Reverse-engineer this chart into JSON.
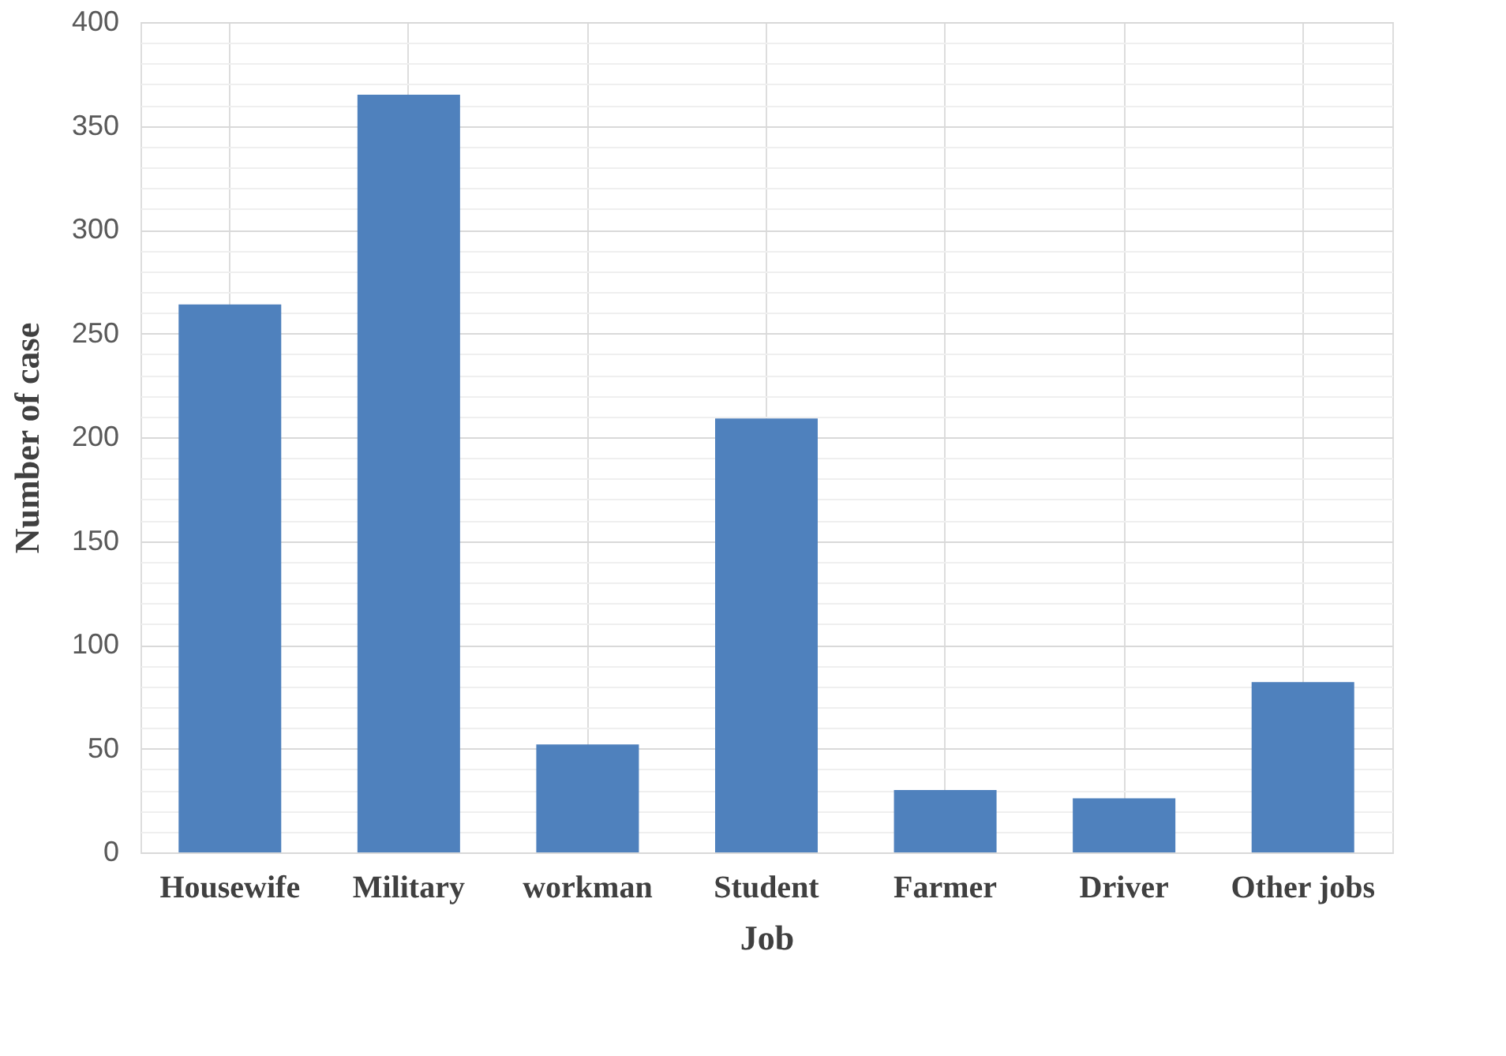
{
  "chart_data": {
    "type": "bar",
    "xlabel": "Job",
    "ylabel": "Number of case",
    "categories": [
      "Housewife",
      "Military",
      "workman",
      "Student",
      "Farmer",
      "Driver",
      "Other jobs"
    ],
    "values": [
      264,
      365,
      52,
      209,
      30,
      26,
      82
    ],
    "color": "#4f81bd",
    "ylim": [
      0,
      400
    ],
    "yticks": [
      0,
      {
        "value": 10,
        "label": null
      },
      {
        "value": 20,
        "label": null
      },
      {
        "value": 30,
        "label": null
      },
      {
        "value": 40,
        "label": null
      },
      50,
      {
        "value": 60,
        "label": null
      },
      {
        "value": 70,
        "label": null
      },
      {
        "value": 80,
        "label": null
      },
      {
        "value": 90,
        "label": null
      },
      100,
      {
        "value": 110,
        "label": null
      },
      {
        "value": 120,
        "label": null
      },
      {
        "value": 130,
        "label": null
      },
      {
        "value": 140,
        "label": null
      },
      150,
      {
        "value": 160,
        "label": null
      },
      {
        "value": 170,
        "label": null
      },
      {
        "value": 180,
        "label": null
      },
      {
        "value": 190,
        "label": null
      },
      200,
      {
        "value": 210,
        "label": null
      },
      {
        "value": 220,
        "label": null
      },
      {
        "value": 230,
        "label": null
      },
      {
        "value": 240,
        "label": null
      },
      250,
      {
        "value": 260,
        "label": null
      },
      {
        "value": 270,
        "label": null
      },
      {
        "value": 280,
        "label": null
      },
      {
        "value": 290,
        "label": null
      },
      300,
      {
        "value": 310,
        "label": null
      },
      {
        "value": 320,
        "label": null
      },
      {
        "value": 330,
        "label": null
      },
      {
        "value": 340,
        "label": null
      },
      350,
      {
        "value": 360,
        "label": null
      },
      {
        "value": 370,
        "label": null
      },
      {
        "value": 380,
        "label": null
      },
      {
        "value": 390,
        "label": null
      },
      400
    ],
    "grid": true
  }
}
